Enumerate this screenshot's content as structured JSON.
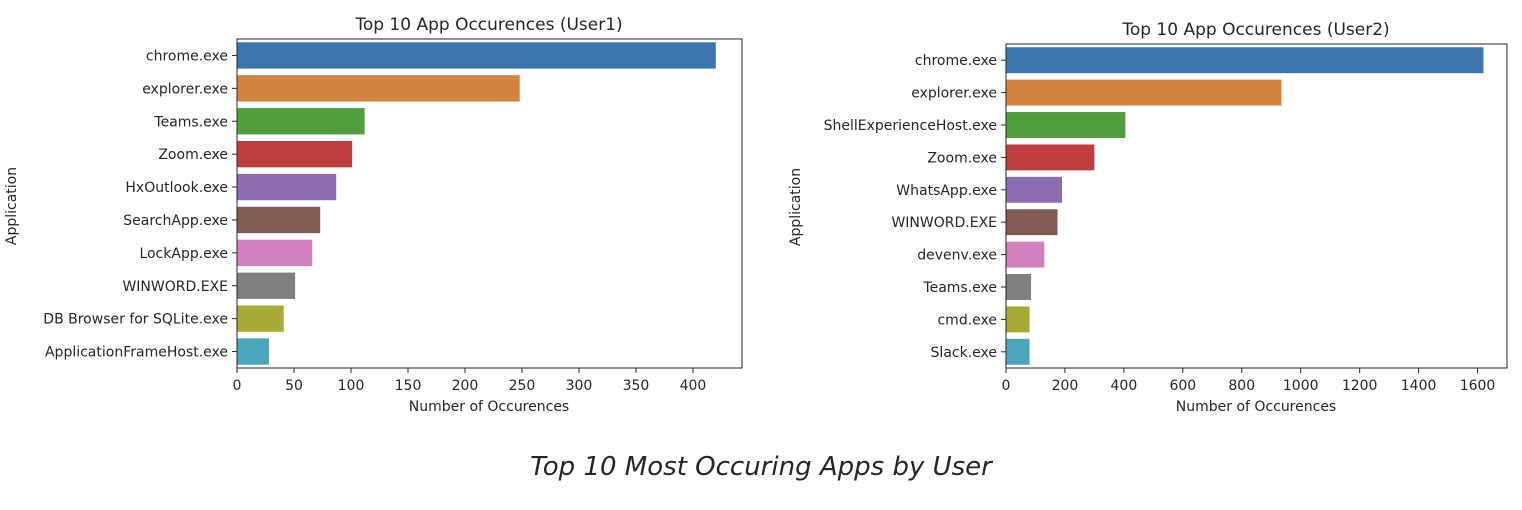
{
  "caption": "Top 10 Most Occuring Apps by User",
  "chart_data": [
    {
      "type": "bar",
      "orientation": "horizontal",
      "title": "Top 10 App Occurences (User1)",
      "xlabel": "Number of Occurences",
      "ylabel": "Application",
      "categories": [
        "chrome.exe",
        "explorer.exe",
        "Teams.exe",
        "Zoom.exe",
        "HxOutlook.exe",
        "SearchApp.exe",
        "LockApp.exe",
        "WINWORD.EXE",
        "DB Browser for SQLite.exe",
        "ApplicationFrameHost.exe"
      ],
      "values": [
        420,
        248,
        112,
        101,
        87,
        73,
        66,
        51,
        41,
        28
      ],
      "xlim": [
        0,
        443
      ],
      "xticks": [
        0,
        50,
        100,
        150,
        200,
        250,
        300,
        350,
        400
      ],
      "colors": [
        "#3b75af",
        "#d3843f",
        "#519e3e",
        "#c03d3e",
        "#8c6bb1",
        "#845b53",
        "#d37fbe",
        "#7f7f7f",
        "#a9aa35",
        "#4ba5bb"
      ],
      "grid": false
    },
    {
      "type": "bar",
      "orientation": "horizontal",
      "title": "Top 10 App Occurences (User2)",
      "xlabel": "Number of Occurences",
      "ylabel": "Application",
      "categories": [
        "chrome.exe",
        "explorer.exe",
        "ShellExperienceHost.exe",
        "Zoom.exe",
        "WhatsApp.exe",
        "WINWORD.EXE",
        "devenv.exe",
        "Teams.exe",
        "cmd.exe",
        "Slack.exe"
      ],
      "values": [
        1620,
        935,
        405,
        300,
        190,
        175,
        130,
        85,
        80,
        80
      ],
      "xlim": [
        0,
        1700
      ],
      "xticks": [
        0,
        200,
        400,
        600,
        800,
        1000,
        1200,
        1400,
        1600
      ],
      "colors": [
        "#3b75af",
        "#d3843f",
        "#519e3e",
        "#c03d3e",
        "#8c6bb1",
        "#845b53",
        "#d37fbe",
        "#7f7f7f",
        "#a9aa35",
        "#4ba5bb"
      ],
      "grid": false
    }
  ]
}
